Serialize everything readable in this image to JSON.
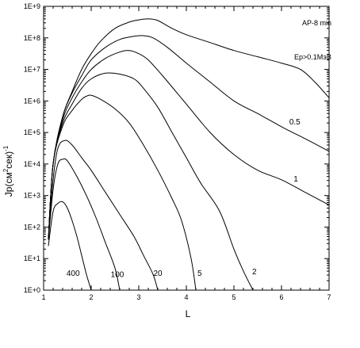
{
  "chart_data": {
    "type": "line",
    "title": "",
    "xlabel": "L",
    "ylabel": "Jp(см²сек)⁻¹",
    "ylabel_parts": {
      "main": "Jp(см",
      "sup1": "2",
      "mid": "сек)",
      "sup2": "-1"
    },
    "xlim": [
      1,
      7
    ],
    "ylim": [
      0,
      9
    ],
    "yscale": "log",
    "x_ticks": [
      "1",
      "2",
      "3",
      "4",
      "5",
      "6",
      "7"
    ],
    "y_ticks": [
      "1E+0",
      "1E+1",
      "1E+2",
      "1E+3",
      "1E+4",
      "1E+5",
      "1E+6",
      "1E+7",
      "1E+8",
      "1E+9"
    ],
    "grid": false,
    "annotations": [
      {
        "text": "AP-8 min"
      },
      {
        "text": "Ep>0.1MэВ"
      }
    ],
    "series": [
      {
        "name": "Ep>0.1MэВ",
        "x": [
          1.1,
          1.2,
          1.4,
          1.6,
          1.8,
          2.0,
          2.2,
          2.5,
          2.8,
          3.0,
          3.2,
          3.4,
          3.7,
          4.0,
          4.5,
          5.0,
          5.5,
          6.0,
          6.4,
          6.7,
          7.0
        ],
        "y": [
          1.6,
          4.0,
          5.5,
          6.3,
          7.0,
          7.5,
          7.9,
          8.3,
          8.5,
          8.57,
          8.6,
          8.55,
          8.3,
          8.1,
          7.85,
          7.6,
          7.4,
          7.2,
          7.0,
          6.6,
          6.1
        ]
      },
      {
        "name": "0.5",
        "x": [
          1.1,
          1.2,
          1.4,
          1.6,
          1.8,
          2.0,
          2.3,
          2.6,
          2.9,
          3.1,
          3.3,
          3.6,
          4.0,
          4.5,
          5.0,
          5.5,
          5.8,
          6.1,
          6.5,
          7.0
        ],
        "y": [
          1.6,
          4.0,
          5.5,
          6.25,
          6.8,
          7.3,
          7.7,
          7.95,
          8.05,
          8.07,
          8.0,
          7.7,
          7.2,
          6.6,
          6.0,
          5.6,
          5.35,
          5.1,
          4.8,
          4.4
        ]
      },
      {
        "name": "1",
        "x": [
          1.1,
          1.2,
          1.4,
          1.6,
          1.8,
          2.0,
          2.3,
          2.6,
          2.8,
          3.0,
          3.2,
          3.5,
          4.0,
          4.5,
          5.0,
          5.5,
          6.0,
          6.5,
          7.0
        ],
        "y": [
          1.6,
          4.0,
          5.4,
          6.1,
          6.6,
          7.0,
          7.35,
          7.55,
          7.6,
          7.5,
          7.3,
          6.8,
          5.9,
          5.0,
          4.3,
          3.8,
          3.5,
          3.1,
          2.7
        ]
      },
      {
        "name": "2",
        "x": [
          1.1,
          1.2,
          1.4,
          1.6,
          1.8,
          2.0,
          2.3,
          2.6,
          2.9,
          3.1,
          3.4,
          3.7,
          4.0,
          4.3,
          4.7,
          5.0,
          5.2,
          5.4
        ],
        "y": [
          1.6,
          4.0,
          5.3,
          5.9,
          6.4,
          6.7,
          6.88,
          6.85,
          6.7,
          6.4,
          5.8,
          5.0,
          4.2,
          3.4,
          2.5,
          1.3,
          0.6,
          0.0
        ]
      },
      {
        "name": "5",
        "x": [
          1.1,
          1.2,
          1.4,
          1.6,
          1.8,
          1.9,
          2.0,
          2.2,
          2.5,
          2.8,
          3.1,
          3.4,
          3.7,
          3.9,
          4.1,
          4.2
        ],
        "y": [
          1.6,
          4.0,
          5.2,
          5.7,
          6.05,
          6.15,
          6.18,
          6.05,
          5.75,
          5.3,
          4.6,
          3.8,
          2.9,
          2.2,
          1.0,
          0.0
        ]
      },
      {
        "name": "20",
        "x": [
          1.1,
          1.2,
          1.3,
          1.45,
          1.6,
          1.8,
          2.0,
          2.3,
          2.6,
          2.9,
          3.1,
          3.3,
          3.4
        ],
        "y": [
          1.6,
          3.5,
          4.5,
          4.75,
          4.6,
          4.2,
          3.8,
          3.1,
          2.4,
          1.7,
          1.1,
          0.5,
          0.0
        ]
      },
      {
        "name": "100",
        "x": [
          1.1,
          1.2,
          1.3,
          1.4,
          1.5,
          1.7,
          1.9,
          2.1,
          2.3,
          2.5,
          2.6
        ],
        "y": [
          1.6,
          3.2,
          4.0,
          4.15,
          4.1,
          3.6,
          3.0,
          2.3,
          1.5,
          0.7,
          0.0
        ]
      },
      {
        "name": "400",
        "x": [
          1.1,
          1.2,
          1.3,
          1.4,
          1.5,
          1.6,
          1.7,
          1.8,
          1.9,
          2.0
        ],
        "y": [
          1.4,
          2.5,
          2.75,
          2.8,
          2.6,
          2.2,
          1.7,
          1.1,
          0.5,
          0.0
        ]
      }
    ],
    "curve_labels": [
      {
        "text": "0.5",
        "x": 6.28,
        "y": 5.35
      },
      {
        "text": "1",
        "x": 6.3,
        "y": 3.55
      },
      {
        "text": "2",
        "x": 5.43,
        "y": 0.6
      },
      {
        "text": "5",
        "x": 4.28,
        "y": 0.55
      },
      {
        "text": "20",
        "x": 3.4,
        "y": 0.55
      },
      {
        "text": "100",
        "x": 2.55,
        "y": 0.52
      },
      {
        "text": "400",
        "x": 1.62,
        "y": 0.55
      }
    ]
  }
}
